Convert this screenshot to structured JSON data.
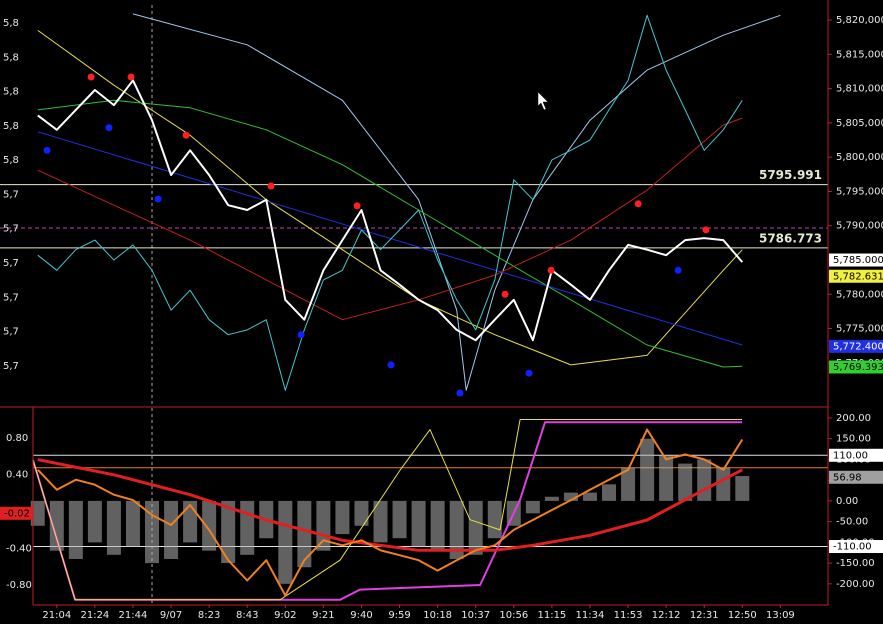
{
  "chart_data": [
    {
      "type": "line",
      "xlim": [
        -1.25,
        40.5
      ],
      "ylim": [
        5763.85,
        5822.2
      ],
      "yticks": [
        {
          "value": 5820,
          "label": "5,820,000"
        },
        {
          "value": 5815,
          "label": "5,815,000"
        },
        {
          "value": 5810,
          "label": "5,810,000"
        },
        {
          "value": 5805,
          "label": "5,805,000"
        },
        {
          "value": 5800,
          "label": "5,800,000"
        },
        {
          "value": 5795,
          "label": "5,795,000"
        },
        {
          "value": 5790,
          "label": "5,790,000"
        },
        {
          "value": 5785,
          "label": "5,785,000"
        },
        {
          "value": 5780,
          "label": "5,780,000"
        },
        {
          "value": 5775,
          "label": "5,775,000"
        },
        {
          "value": 5770,
          "label": "5,770,000"
        }
      ],
      "left_yticks": [
        {
          "value": 5820,
          "label": "5,8"
        },
        {
          "value": 5815,
          "label": "5,8"
        },
        {
          "value": 5810,
          "label": "5,8"
        },
        {
          "value": 5805,
          "label": "5,8"
        },
        {
          "value": 5800,
          "label": "5,8"
        },
        {
          "value": 5795,
          "label": "5,7"
        },
        {
          "value": 5790,
          "label": "5,7"
        },
        {
          "value": 5785,
          "label": "5,7"
        },
        {
          "value": 5780,
          "label": "5,7"
        },
        {
          "value": 5775,
          "label": "5,7"
        },
        {
          "value": 5770,
          "label": "5,7"
        }
      ],
      "session_break": 5.0,
      "levels": [
        {
          "value": 5795.991,
          "label": "5795.991",
          "color": "#e8e8d0"
        },
        {
          "value": 5786.773,
          "label": "5786.773",
          "color": "#e8e8d0"
        },
        {
          "value": 5789.67,
          "color": "#c040c0",
          "dashed": true
        }
      ],
      "markers": [
        {
          "value": 5785.0,
          "label": "5,785.000",
          "color": "#ffffff",
          "text_color": "#000000"
        },
        {
          "value": 5782.631,
          "label": "5,782.631",
          "color": "#f0f040",
          "text_color": "#000000"
        },
        {
          "value": 5772.4,
          "label": "5,772.400",
          "color": "#2030e0",
          "text_color": "#ffffff"
        },
        {
          "value": 5769.393,
          "label": "5,769.393",
          "color": "#30d030",
          "text_color": "#000000"
        }
      ],
      "series": [
        {
          "color": "#a0c8f0",
          "style": "line",
          "width": 1,
          "x": [
            4,
            10,
            15,
            19,
            21,
            21.5,
            23,
            25,
            28,
            31,
            35,
            38
          ],
          "values": [
            5820.9,
            5816.4,
            5808.3,
            5793.8,
            5777.7,
            5766.0,
            5780.6,
            5793.8,
            5805.4,
            5812.7,
            5817.8,
            5820.7
          ]
        },
        {
          "color": "#e8e040",
          "style": "line",
          "width": 1,
          "x": [
            -1,
            3,
            7,
            11,
            15,
            19,
            23,
            27,
            31,
            35,
            36
          ],
          "values": [
            5818.5,
            5810.5,
            5803.2,
            5793.8,
            5786.5,
            5779.2,
            5774.1,
            5769.7,
            5771.1,
            5783.5,
            5786.5
          ]
        },
        {
          "color": "#30c030",
          "style": "line",
          "width": 1,
          "x": [
            -1,
            3,
            7,
            11,
            15,
            19,
            23,
            27,
            31,
            35,
            36
          ],
          "values": [
            5806.9,
            5808.3,
            5807.2,
            5804.0,
            5798.9,
            5792.3,
            5785.7,
            5779.2,
            5772.6,
            5769.4,
            5769.5
          ]
        },
        {
          "color": "#2030e0",
          "style": "line",
          "width": 1,
          "x": [
            -1,
            36
          ],
          "values": [
            5803.7,
            5772.6
          ]
        },
        {
          "color": "#c02020",
          "style": "line",
          "width": 1,
          "x": [
            -1,
            3,
            7,
            11,
            15,
            19,
            23,
            27,
            31,
            35,
            36
          ],
          "values": [
            5798.1,
            5793.0,
            5787.9,
            5782.1,
            5776.3,
            5779.2,
            5782.8,
            5787.9,
            5795.2,
            5804.7,
            5805.7
          ]
        },
        {
          "color": "#40c8d0",
          "style": "line",
          "width": 1,
          "x": [
            -1,
            0,
            1,
            2,
            3,
            4,
            5,
            6,
            7,
            8,
            9,
            10,
            11,
            12,
            13,
            14,
            15,
            16,
            17,
            18,
            19,
            20,
            21,
            22,
            23,
            24,
            25,
            26,
            27,
            28,
            29,
            30,
            31,
            32,
            33,
            34,
            35,
            36
          ],
          "values": [
            5785.7,
            5783.5,
            5786.5,
            5787.9,
            5785.0,
            5787.2,
            5783.5,
            5777.7,
            5780.6,
            5776.3,
            5774.1,
            5774.8,
            5776.3,
            5766.0,
            5774.8,
            5782.1,
            5783.5,
            5789.4,
            5786.5,
            5789.4,
            5792.3,
            5785.0,
            5779.2,
            5774.8,
            5782.1,
            5796.7,
            5793.8,
            5799.6,
            5801.0,
            5802.5,
            5806.9,
            5811.2,
            5820.7,
            5812.7,
            5806.9,
            5801.0,
            5804.0,
            5808.3
          ]
        },
        {
          "color": "#ffffff",
          "style": "line",
          "width": 2,
          "x": [
            -1,
            0,
            1,
            2,
            3,
            4,
            5,
            6,
            7,
            8,
            9,
            10,
            11,
            12,
            13,
            14,
            15,
            16,
            17,
            18,
            19,
            20,
            21,
            22,
            23,
            24,
            25,
            26,
            27,
            28,
            29,
            30,
            31,
            32,
            33,
            34,
            35,
            36
          ],
          "values": [
            5806.1,
            5804.0,
            5806.9,
            5809.8,
            5807.6,
            5811.2,
            5805.4,
            5797.4,
            5801.0,
            5797.4,
            5793.0,
            5792.3,
            5793.8,
            5779.2,
            5776.3,
            5783.5,
            5787.9,
            5792.3,
            5783.5,
            5781.4,
            5779.2,
            5777.7,
            5774.8,
            5773.3,
            5776.3,
            5779.2,
            5773.3,
            5783.5,
            5781.4,
            5779.2,
            5783.5,
            5787.2,
            5786.5,
            5785.7,
            5787.9,
            5788.2,
            5787.9,
            5784.7
          ]
        },
        {
          "color": "#ff2020",
          "style": "markers",
          "x": [
            1.8,
            3.9,
            6.79,
            11.25,
            15.77,
            23.54,
            25.96,
            30.53,
            34.09
          ],
          "values": [
            5811.7,
            5811.7,
            5803.2,
            5795.8,
            5792.9,
            5780.0,
            5783.5,
            5793.2,
            5789.4
          ]
        },
        {
          "color": "#1020ff",
          "style": "markers",
          "x": [
            -0.51,
            2.74,
            5.32,
            12.83,
            17.55,
            21.17,
            24.8,
            32.63
          ],
          "values": [
            5801.0,
            5804.3,
            5793.9,
            5774.1,
            5769.7,
            5765.6,
            5768.5,
            5783.5
          ]
        }
      ]
    },
    {
      "type": "line",
      "xlim": [
        -1.25,
        40.5
      ],
      "ylim": [
        -251,
        224
      ],
      "y2lim": [
        -1.017,
        1.125
      ],
      "yticks": [
        {
          "value": 200,
          "label": "200.00"
        },
        {
          "value": 150,
          "label": "150.00"
        },
        {
          "value": 100,
          "label": "100.00"
        },
        {
          "value": 50,
          "label": "50.00"
        },
        {
          "value": 0,
          "label": "0.00"
        },
        {
          "value": -50,
          "label": "-50.00"
        },
        {
          "value": -100,
          "label": "-100.00"
        },
        {
          "value": -150,
          "label": "-150.00"
        },
        {
          "value": -200,
          "label": "-200.00"
        }
      ],
      "y2ticks": [
        {
          "value": 0.8,
          "label": "0.80"
        },
        {
          "value": 0.4,
          "label": "0.40"
        },
        {
          "value": -0.4,
          "label": "-0.40"
        },
        {
          "value": -0.8,
          "label": "-0.80"
        }
      ],
      "xticks": [
        {
          "value": 0,
          "label": "21:04"
        },
        {
          "value": 2,
          "label": "21:24"
        },
        {
          "value": 4,
          "label": "21:44"
        },
        {
          "value": 6,
          "label": "9/07"
        },
        {
          "value": 8,
          "label": "8:23"
        },
        {
          "value": 10,
          "label": "8:43"
        },
        {
          "value": 12,
          "label": "9:02"
        },
        {
          "value": 14,
          "label": "9:21"
        },
        {
          "value": 16,
          "label": "9:40"
        },
        {
          "value": 18,
          "label": "9:59"
        },
        {
          "value": 20,
          "label": "10:18"
        },
        {
          "value": 22,
          "label": "10:37"
        },
        {
          "value": 24,
          "label": "10:56"
        },
        {
          "value": 26,
          "label": "11:15"
        },
        {
          "value": 28,
          "label": "11:34"
        },
        {
          "value": 30,
          "label": "11:53"
        },
        {
          "value": 32,
          "label": "12:12"
        },
        {
          "value": 34,
          "label": "12:31"
        },
        {
          "value": 36,
          "label": "12:50"
        },
        {
          "value": 38,
          "label": "13:09"
        }
      ],
      "session_break": 5.0,
      "levels": [
        {
          "value": 110,
          "color": "#e0e0e0"
        },
        {
          "value": 80,
          "color": "#e08020"
        },
        {
          "value": -110,
          "color": "#e0e0e0"
        }
      ],
      "markers": [
        {
          "value": 110,
          "label": "110.00",
          "color": "#ffffff",
          "text_color": "#000000"
        },
        {
          "value": 56.98,
          "label": "56.98",
          "color": "#a0a0a0",
          "text_color": "#000000"
        },
        {
          "value": -110,
          "label": "-110.00",
          "color": "#ffffff",
          "text_color": "#000000"
        }
      ],
      "y2markers": [
        {
          "value": -0.02,
          "label": "-0.02",
          "color": "#e02020",
          "text_color": "#000000"
        }
      ],
      "series": [
        {
          "color": "#b0b0b0",
          "style": "bars",
          "x": [
            -1,
            0,
            1,
            2,
            3,
            4,
            5,
            6,
            7,
            8,
            9,
            10,
            11,
            12,
            13,
            14,
            15,
            16,
            17,
            18,
            19,
            20,
            21,
            22,
            23,
            24,
            25,
            26,
            27,
            28,
            29,
            30,
            31,
            32,
            33,
            34,
            35,
            36
          ],
          "values": [
            -60,
            -120,
            -140,
            -100,
            -130,
            -110,
            -150,
            -140,
            -100,
            -120,
            -150,
            -130,
            -90,
            -200,
            -160,
            -120,
            -80,
            -60,
            -100,
            -90,
            -110,
            -120,
            -140,
            -130,
            -90,
            -60,
            -30,
            10,
            20,
            20,
            40,
            80,
            150,
            110,
            90,
            100,
            80,
            60
          ]
        },
        {
          "color": "#e040e0",
          "style": "line",
          "width": 2,
          "axis": "y2",
          "x": [
            -1.25,
            0.96,
            14.87,
            15.92,
            22.23,
            24.33,
            25.64,
            35.99
          ],
          "values": [
            0.56,
            -0.96,
            -0.96,
            -0.85,
            -0.8,
            0.13,
            0.97,
            0.97
          ]
        },
        {
          "color": "#e8e040",
          "style": "line",
          "width": 1,
          "axis": "y2",
          "x": [
            -1.25,
            0.96,
            11.72,
            14.87,
            18.03,
            19.6,
            21.7,
            23.28,
            24.33,
            35.99
          ],
          "values": [
            0.56,
            -0.96,
            -0.96,
            -0.53,
            0.45,
            0.89,
            -0.09,
            -0.2,
            1.0,
            1.0
          ]
        },
        {
          "color": "#e02020",
          "style": "line",
          "width": 3,
          "x": [
            -1,
            3,
            7,
            11,
            15,
            19,
            23,
            25,
            28,
            31,
            34,
            36
          ],
          "values": [
            99.5,
            63,
            15,
            -46,
            -95,
            -119,
            -119,
            -107,
            -83,
            -46,
            27,
            75
          ]
        },
        {
          "color": "#f08020",
          "style": "line",
          "width": 2,
          "x": [
            -1,
            0,
            1,
            2,
            3,
            4,
            5,
            6,
            7,
            8,
            9,
            10,
            11,
            12,
            13,
            14,
            15,
            16,
            17,
            18,
            19,
            20,
            21,
            22,
            23,
            24,
            25,
            26,
            27,
            28,
            29,
            30,
            31,
            32,
            33,
            34,
            35,
            36
          ],
          "values": [
            75,
            27,
            51,
            39,
            15,
            2,
            -34,
            -58,
            -10,
            -70,
            -143,
            -192,
            -143,
            -228,
            -143,
            -95,
            -107,
            -95,
            -119,
            -131,
            -143,
            -168,
            -143,
            -119,
            -107,
            -70,
            -46,
            -22,
            2,
            27,
            51,
            75,
            172,
            100,
            112,
            100,
            75,
            148
          ]
        }
      ]
    }
  ]
}
